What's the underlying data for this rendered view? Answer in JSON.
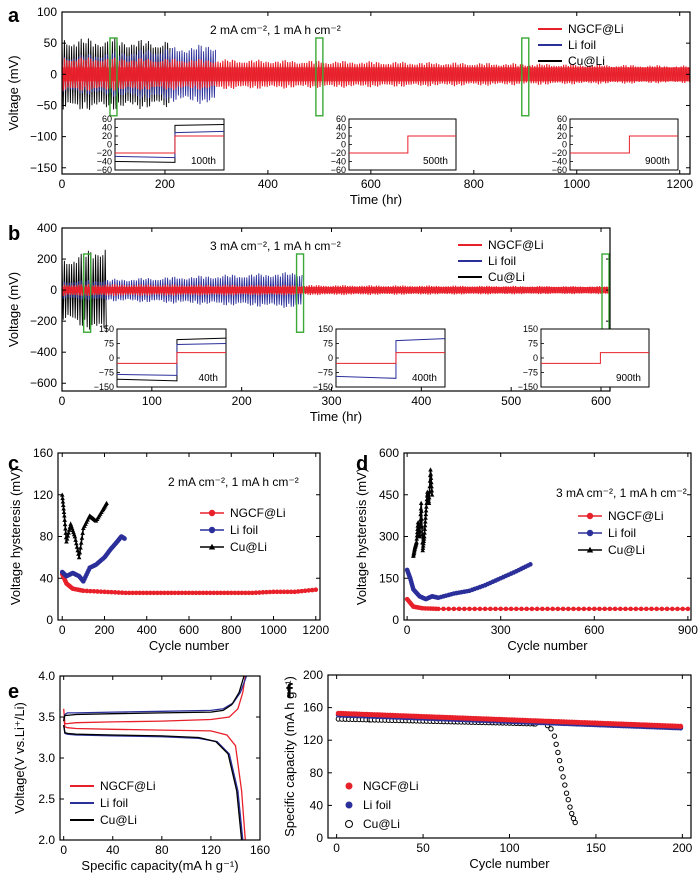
{
  "colors": {
    "red": "#e8202a",
    "blue": "#2b2f9a",
    "black": "#000000",
    "green": "#3aa935"
  },
  "chart_data": [
    {
      "id": "a",
      "type": "line",
      "panel_label": "a",
      "annotation": "2 mA cm⁻², 1 mA h cm⁻²",
      "xlabel": "Time (hr)",
      "ylabel": "Voltage (mV)",
      "xlim": [
        0,
        1220
      ],
      "ylim": [
        -160,
        100
      ],
      "xticks": [
        0,
        200,
        400,
        600,
        800,
        1000,
        1200
      ],
      "yticks": [
        -150,
        -100,
        -50,
        0,
        50,
        100
      ],
      "legend_position": "top-right",
      "series": [
        {
          "name": "NGCF@Li",
          "color": "red",
          "x_end": 1220,
          "amp_start": 28,
          "amp_end": 14
        },
        {
          "name": "Li foil",
          "color": "blue",
          "x_end": 300,
          "amp_start": 30,
          "amp_end": 50
        },
        {
          "name": "Cu@Li",
          "color": "black",
          "x_end": 210,
          "amp_start": 60,
          "amp_end": 55
        }
      ],
      "highlights_x": [
        100,
        500,
        900
      ],
      "insets": [
        {
          "label": "100th",
          "yticks": [
            60,
            40,
            20,
            0,
            -20,
            -40,
            -60
          ],
          "ylim": [
            -60,
            60
          ]
        },
        {
          "label": "500th",
          "yticks": [
            60,
            40,
            20,
            0,
            -20,
            -40,
            -60
          ],
          "ylim": [
            -60,
            60
          ]
        },
        {
          "label": "900th",
          "yticks": [
            60,
            40,
            20,
            0,
            -20,
            -40,
            -60
          ],
          "ylim": [
            -60,
            60
          ]
        }
      ]
    },
    {
      "id": "b",
      "type": "line",
      "panel_label": "b",
      "annotation": "3 mA cm⁻², 1 mA h cm⁻²",
      "xlabel": "Time (hr)",
      "ylabel": "Voltage (mV)",
      "xlim": [
        0,
        610
      ],
      "ylim": [
        -650,
        400
      ],
      "xticks": [
        0,
        100,
        200,
        300,
        400,
        500,
        600
      ],
      "yticks": [
        -600,
        -400,
        -200,
        0,
        200,
        400
      ],
      "legend_position": "top-right",
      "series": [
        {
          "name": "NGCF@Li",
          "color": "red",
          "x_end": 610,
          "amp_start": 40,
          "amp_end": 25
        },
        {
          "name": "Li foil",
          "color": "blue",
          "x_end": 268,
          "amp_start": 60,
          "amp_end": 120
        },
        {
          "name": "Cu@Li",
          "color": "black",
          "x_end": 50,
          "amp_start": 200,
          "amp_end": 300
        }
      ],
      "highlights_x": [
        28,
        265,
        605
      ],
      "insets": [
        {
          "label": "40th",
          "yticks": [
            150,
            75,
            0,
            -75,
            -150
          ],
          "ylim": [
            -150,
            150
          ]
        },
        {
          "label": "400th",
          "yticks": [
            150,
            75,
            0,
            -75,
            -150
          ],
          "ylim": [
            -150,
            150
          ]
        },
        {
          "label": "900th",
          "yticks": [
            150,
            75,
            0,
            -75,
            -150
          ],
          "ylim": [
            -150,
            150
          ]
        }
      ]
    },
    {
      "id": "c",
      "type": "line",
      "panel_label": "c",
      "annotation": "2 mA cm⁻², 1 mA h cm⁻²",
      "xlabel": "Cycle number",
      "ylabel": "Voltage hysteresis (mV)",
      "xlim": [
        -20,
        1220
      ],
      "ylim": [
        0,
        160
      ],
      "xticks": [
        0,
        200,
        400,
        600,
        800,
        1000,
        1200
      ],
      "yticks": [
        0,
        40,
        80,
        120,
        160
      ],
      "legend_position": "right",
      "series": [
        {
          "name": "NGCF@Li",
          "color": "red",
          "marker": "circle",
          "x": [
            0,
            20,
            50,
            100,
            200,
            300,
            400,
            500,
            600,
            700,
            800,
            900,
            1000,
            1100,
            1200
          ],
          "y": [
            44,
            35,
            30,
            28,
            27,
            26,
            26,
            26,
            26,
            26,
            26,
            26,
            27,
            27,
            29
          ]
        },
        {
          "name": "Li foil",
          "color": "blue",
          "marker": "circle",
          "x": [
            0,
            20,
            50,
            80,
            100,
            130,
            160,
            200,
            230,
            260,
            280,
            295
          ],
          "y": [
            46,
            42,
            45,
            42,
            37,
            50,
            53,
            60,
            68,
            75,
            80,
            78
          ]
        },
        {
          "name": "Cu@Li",
          "color": "black",
          "marker": "triangle",
          "x": [
            0,
            10,
            20,
            40,
            60,
            80,
            100,
            130,
            160,
            190,
            210
          ],
          "y": [
            120,
            100,
            75,
            92,
            80,
            60,
            88,
            100,
            95,
            105,
            112
          ]
        }
      ]
    },
    {
      "id": "d",
      "type": "line",
      "panel_label": "d",
      "annotation": "3 mA cm⁻², 1 mA h cm⁻²",
      "xlabel": "Cycle number",
      "ylabel": "Voltage hysteresis (mV)",
      "xlim": [
        -10,
        910
      ],
      "ylim": [
        0,
        600
      ],
      "xticks": [
        0,
        300,
        600,
        900
      ],
      "yticks": [
        0,
        150,
        300,
        450,
        600
      ],
      "legend_position": "right",
      "series": [
        {
          "name": "NGCF@Li",
          "color": "red",
          "marker": "circle",
          "x": [
            0,
            20,
            50,
            100,
            200,
            300,
            400,
            500,
            600,
            700,
            800,
            900
          ],
          "y": [
            75,
            48,
            42,
            40,
            40,
            40,
            40,
            40,
            40,
            40,
            40,
            40
          ]
        },
        {
          "name": "Li foil",
          "color": "blue",
          "marker": "circle",
          "x": [
            0,
            10,
            20,
            40,
            60,
            80,
            100,
            150,
            200,
            250,
            300,
            350,
            395
          ],
          "y": [
            180,
            150,
            110,
            85,
            75,
            85,
            80,
            95,
            105,
            125,
            150,
            175,
            200
          ]
        },
        {
          "name": "Cu@Li",
          "color": "black",
          "marker": "triangle",
          "x": [
            20,
            25,
            30,
            35,
            40,
            45,
            50,
            55,
            60,
            65,
            70,
            75,
            80
          ],
          "y": [
            230,
            260,
            280,
            350,
            300,
            420,
            250,
            300,
            380,
            460,
            420,
            540,
            450
          ]
        }
      ]
    },
    {
      "id": "e",
      "type": "line",
      "panel_label": "e",
      "xlabel": "Specific capacity(mA h g⁻¹)",
      "ylabel": "Voltage(V vs.Li⁺/Li)",
      "xlim": [
        -3,
        160
      ],
      "ylim": [
        2.0,
        4.0
      ],
      "xticks": [
        0,
        40,
        80,
        120,
        160
      ],
      "yticks": [
        2.0,
        2.5,
        3.0,
        3.5,
        4.0
      ],
      "legend_position": "bottom-left",
      "series": [
        {
          "name": "NGCF@Li",
          "color": "red",
          "charge": {
            "x": [
              0,
              1,
              3,
              10,
              40,
              80,
              120,
              135,
              142,
              146,
              148
            ],
            "y": [
              3.6,
              3.42,
              3.42,
              3.43,
              3.44,
              3.45,
              3.47,
              3.5,
              3.6,
              3.8,
              4.0
            ]
          },
          "discharge": {
            "x": [
              0,
              1,
              3,
              10,
              40,
              80,
              120,
              133,
              140,
              145,
              148
            ],
            "y": [
              3.5,
              3.38,
              3.37,
              3.36,
              3.35,
              3.34,
              3.33,
              3.28,
              3.15,
              2.6,
              2.0
            ]
          }
        },
        {
          "name": "Li foil",
          "color": "blue",
          "charge": {
            "x": [
              0,
              1,
              3,
              10,
              40,
              80,
              120,
              130,
              138,
              144,
              149
            ],
            "y": [
              3.45,
              3.53,
              3.55,
              3.55,
              3.56,
              3.57,
              3.58,
              3.6,
              3.67,
              3.8,
              4.0
            ]
          },
          "discharge": {
            "x": [
              0,
              1,
              3,
              10,
              40,
              80,
              110,
              125,
              135,
              142,
              146
            ],
            "y": [
              3.4,
              3.3,
              3.29,
              3.28,
              3.27,
              3.26,
              3.24,
              3.2,
              3.05,
              2.6,
              2.0
            ]
          }
        },
        {
          "name": "Cu@Li",
          "color": "black",
          "charge": {
            "x": [
              0,
              1,
              3,
              10,
              40,
              80,
              120,
              130,
              137,
              143,
              147
            ],
            "y": [
              3.45,
              3.52,
              3.52,
              3.53,
              3.54,
              3.55,
              3.56,
              3.58,
              3.65,
              3.8,
              4.0
            ]
          },
          "discharge": {
            "x": [
              0,
              1,
              3,
              10,
              40,
              80,
              110,
              124,
              134,
              141,
              145
            ],
            "y": [
              3.4,
              3.31,
              3.3,
              3.29,
              3.28,
              3.27,
              3.25,
              3.2,
              3.05,
              2.6,
              2.0
            ]
          }
        }
      ]
    },
    {
      "id": "f",
      "type": "scatter",
      "panel_label": "f",
      "xlabel": "Cycle number",
      "ylabel": "Specific capacity (mA h g⁻¹)",
      "xlim": [
        -5,
        205
      ],
      "ylim": [
        0,
        200
      ],
      "xticks": [
        0,
        50,
        100,
        150,
        200
      ],
      "yticks": [
        0,
        40,
        80,
        120,
        160,
        200
      ],
      "legend_position": "bottom-left",
      "series": [
        {
          "name": "NGCF@Li",
          "color": "red",
          "marker": "circle",
          "x_start": 1,
          "x_end": 200,
          "y_start": 153,
          "y_end": 137
        },
        {
          "name": "Li foil",
          "color": "blue",
          "marker": "circle",
          "x_start": 1,
          "x_end": 200,
          "y_start": 151,
          "y_end": 135
        },
        {
          "name": "Cu@Li",
          "color": "black",
          "marker": "open-circle",
          "x": [
            1,
            20,
            40,
            60,
            80,
            100,
            115,
            122,
            124,
            126,
            127,
            128,
            129,
            130,
            131,
            132,
            133,
            134,
            135,
            136,
            137,
            138
          ],
          "y": [
            146,
            145,
            144,
            143,
            142,
            141,
            140,
            138,
            134,
            125,
            115,
            105,
            95,
            85,
            75,
            65,
            55,
            47,
            38,
            30,
            24,
            19
          ]
        }
      ]
    }
  ]
}
